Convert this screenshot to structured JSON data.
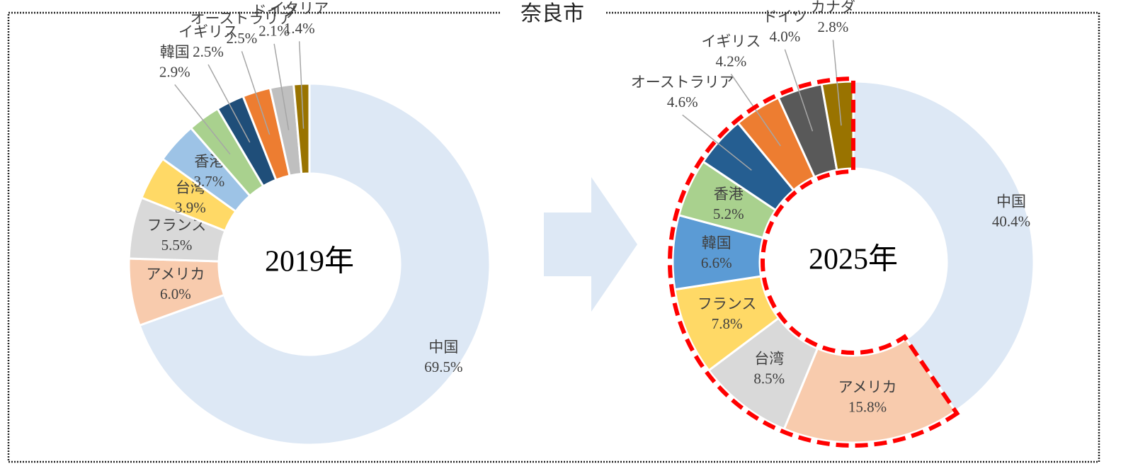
{
  "title": "奈良市",
  "chart_data": [
    {
      "type": "donut",
      "center_label": "2019年",
      "categories": [
        "中国",
        "アメリカ",
        "フランス",
        "台湾",
        "香港",
        "韓国",
        "イギリス",
        "オーストラリア",
        "ドイツ",
        "イタリア"
      ],
      "values": [
        69.5,
        6.0,
        5.5,
        3.9,
        3.7,
        2.9,
        2.5,
        2.5,
        2.1,
        1.4
      ],
      "value_labels": [
        "69.5%",
        "6.0%",
        "5.5%",
        "3.9%",
        "3.7%",
        "2.9%",
        "2.5%",
        "2.5%",
        "2.1%",
        "1.4%"
      ],
      "colors": [
        "#dde8f5",
        "#f8cbad",
        "#d9d9d9",
        "#ffd966",
        "#9dc3e6",
        "#a9d18e",
        "#1f4e79",
        "#ed7d31",
        "#bfbfbf",
        "#997300"
      ]
    },
    {
      "type": "donut",
      "center_label": "2025年",
      "categories": [
        "中国",
        "アメリカ",
        "台湾",
        "フランス",
        "韓国",
        "香港",
        "オーストラリア",
        "イギリス",
        "ドイツ",
        "カナダ"
      ],
      "values": [
        40.4,
        15.8,
        8.5,
        7.8,
        6.6,
        5.2,
        4.6,
        4.2,
        4.0,
        2.8
      ],
      "value_labels": [
        "40.4%",
        "15.8%",
        "8.5%",
        "7.8%",
        "6.6%",
        "5.2%",
        "4.6%",
        "4.2%",
        "4.0%",
        "2.8%"
      ],
      "colors": [
        "#dde8f5",
        "#f8cbad",
        "#d9d9d9",
        "#ffd966",
        "#5b9bd5",
        "#a9d18e",
        "#255e91",
        "#ed7d31",
        "#595959",
        "#997300"
      ]
    }
  ]
}
